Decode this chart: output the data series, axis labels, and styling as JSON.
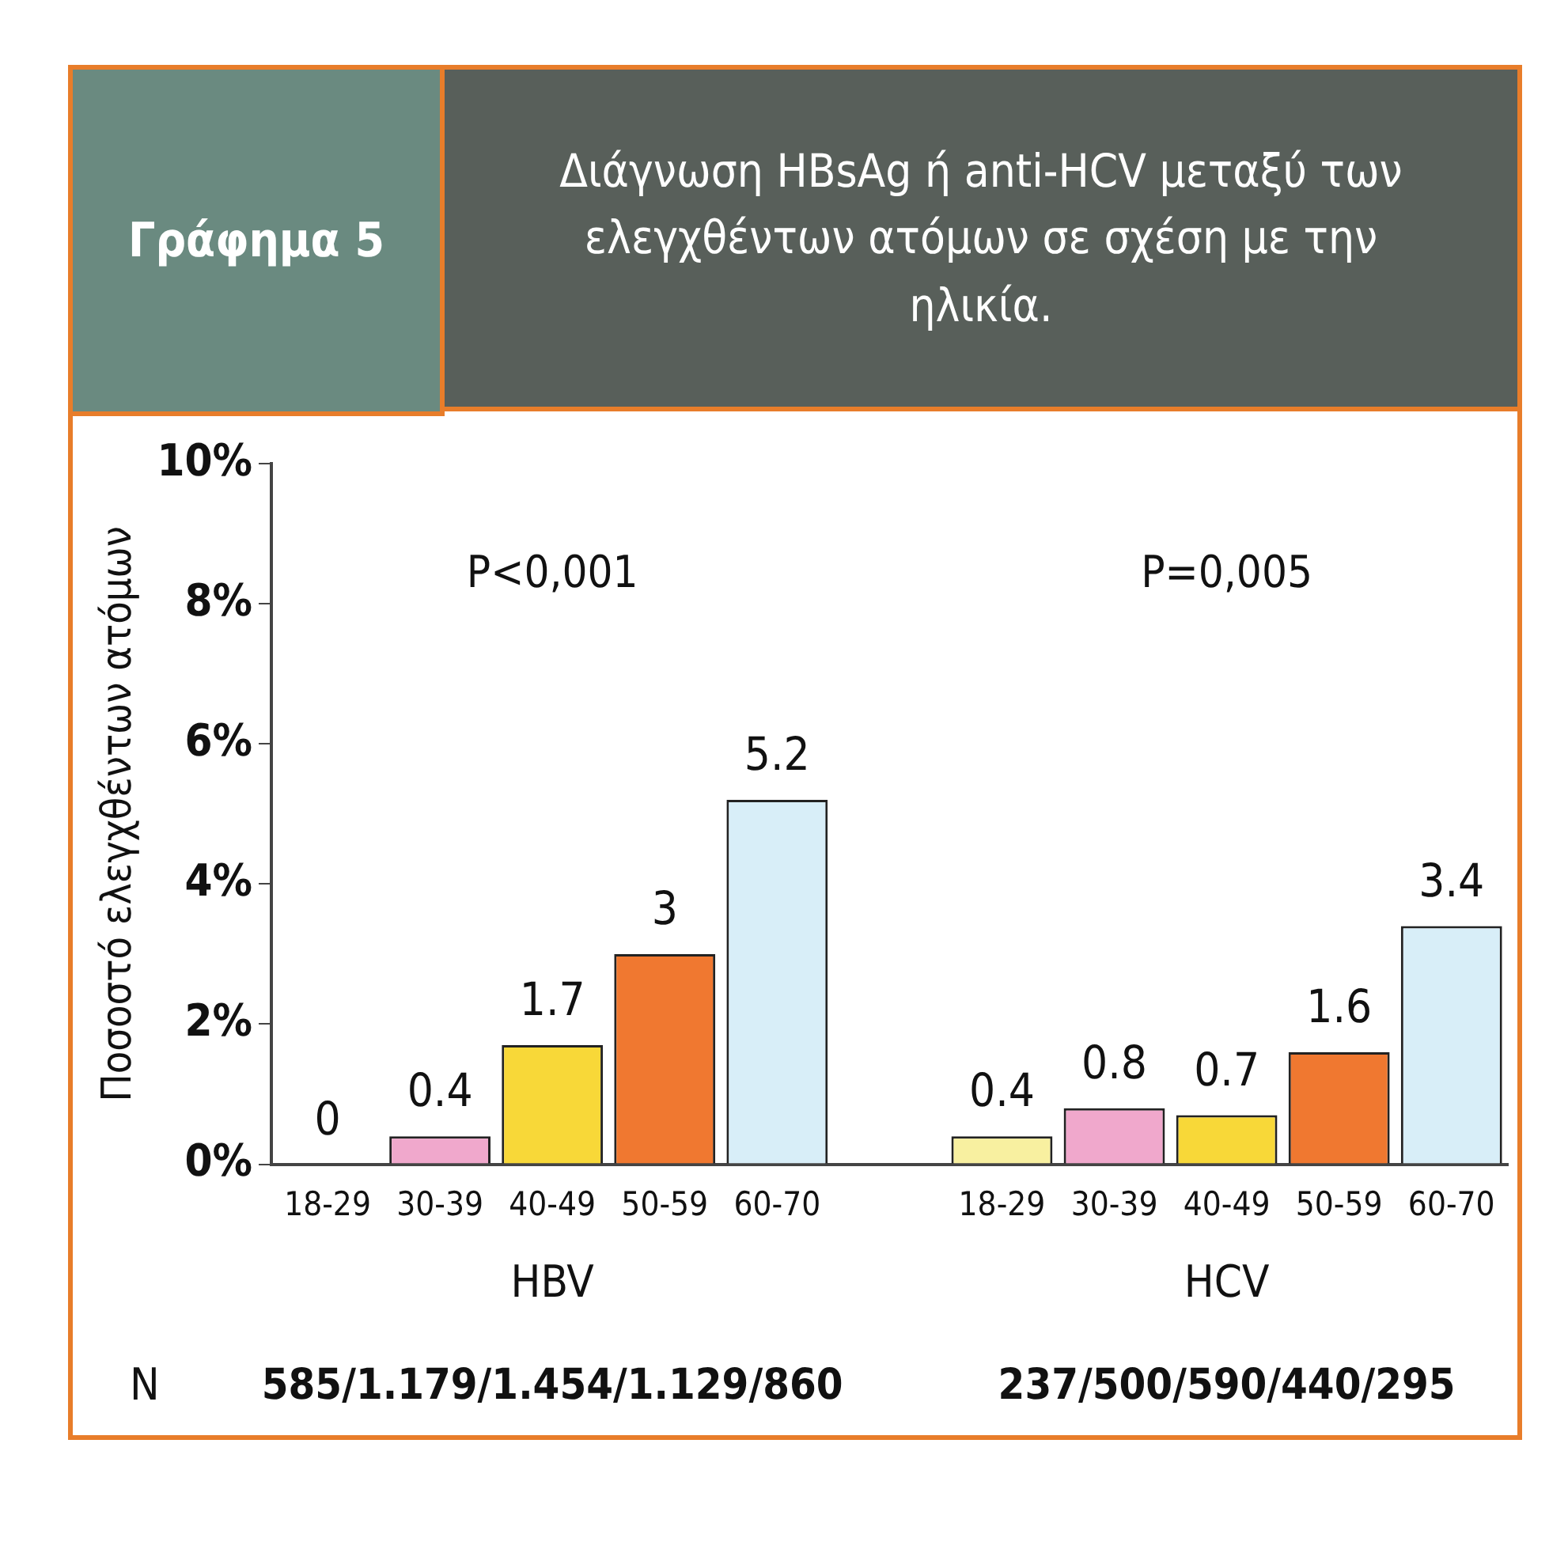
{
  "chart_data": {
    "type": "bar",
    "title": "Γράφημα 5",
    "subtitle": "Διάγνωση HBsAg ή anti-HCV μεταξύ των ελεγχθέντων ατόμων σε σχέση με την ηλικία.",
    "ylabel": "Ποσοστό ελεγχθέντων ατόμων",
    "categories": [
      "18-29",
      "30-39",
      "40-49",
      "50-59",
      "60-70",
      null,
      "18-29",
      "30-39",
      "40-49",
      "50-59",
      "60-70"
    ],
    "values": [
      0,
      0.4,
      1.7,
      3,
      5.2,
      null,
      0.4,
      0.8,
      0.7,
      1.6,
      3.4
    ],
    "colors": [
      "#f8f0a0",
      "#f0a8cc",
      "#f8d838",
      "#f07830",
      "#d8eef8",
      null,
      "#f8f0a0",
      "#f0a8cc",
      "#f8d838",
      "#f07830",
      "#d8eef8"
    ],
    "ylim": [
      0,
      10
    ],
    "yticks": [
      {
        "value": 0,
        "label": "0%"
      },
      {
        "value": 2,
        "label": "2%"
      },
      {
        "value": 4,
        "label": "4%"
      },
      {
        "value": 6,
        "label": "6%"
      },
      {
        "value": 8,
        "label": "8%"
      },
      {
        "value": 10,
        "label": "10%"
      }
    ],
    "grid": false,
    "legend": false,
    "data_labels": true,
    "annotations": [
      "P<0,001",
      "P=0,005",
      "HBV",
      "HCV",
      "N",
      "585/1.179/1.454/1.129/860",
      "237/500/590/440/295"
    ]
  }
}
